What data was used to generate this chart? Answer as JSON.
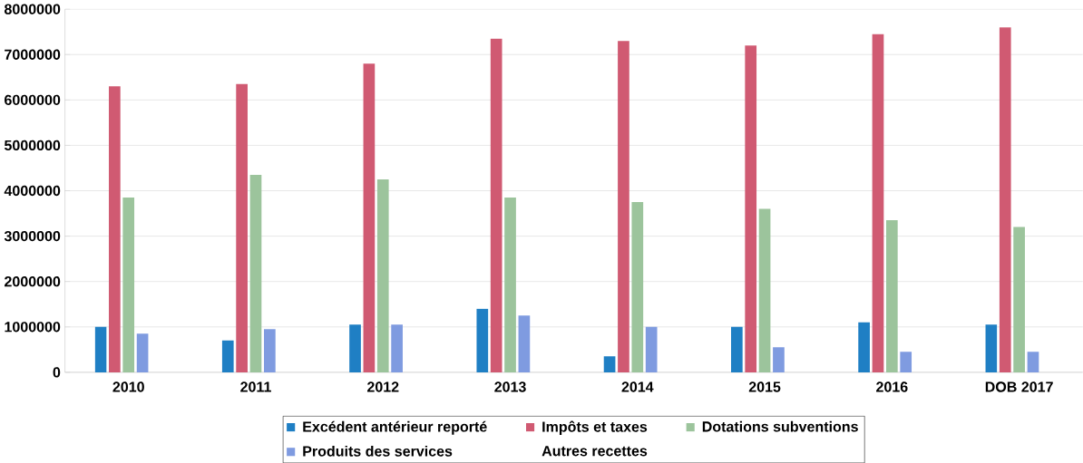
{
  "chart_data": {
    "type": "bar",
    "categories": [
      "2010",
      "2011",
      "2012",
      "2013",
      "2014",
      "2015",
      "2016",
      "DOB 2017"
    ],
    "series": [
      {
        "name": "Excédent antérieur reporté",
        "color": "#1f7fc4",
        "values": [
          1000000,
          700000,
          1050000,
          1400000,
          350000,
          1000000,
          1100000,
          1050000
        ]
      },
      {
        "name": "Impôts et taxes",
        "color": "#d05a72",
        "values": [
          6300000,
          6350000,
          6800000,
          7350000,
          7300000,
          7200000,
          7450000,
          7600000
        ]
      },
      {
        "name": "Dotations subventions",
        "color": "#9cc49c",
        "values": [
          3850000,
          4350000,
          4250000,
          3850000,
          3750000,
          3600000,
          3350000,
          3200000
        ]
      },
      {
        "name": "Produits des services",
        "color": "#7f9be0",
        "values": [
          850000,
          950000,
          1050000,
          1250000,
          1000000,
          550000,
          450000,
          450000
        ]
      },
      {
        "name": "Autres recettes",
        "values": [
          null,
          null,
          null,
          null,
          null,
          null,
          null,
          null
        ]
      }
    ],
    "ylim": [
      0,
      8000000
    ],
    "yticks": [
      0,
      1000000,
      2000000,
      3000000,
      4000000,
      5000000,
      6000000,
      7000000,
      8000000
    ],
    "grid": "y",
    "legend": "bottom"
  }
}
